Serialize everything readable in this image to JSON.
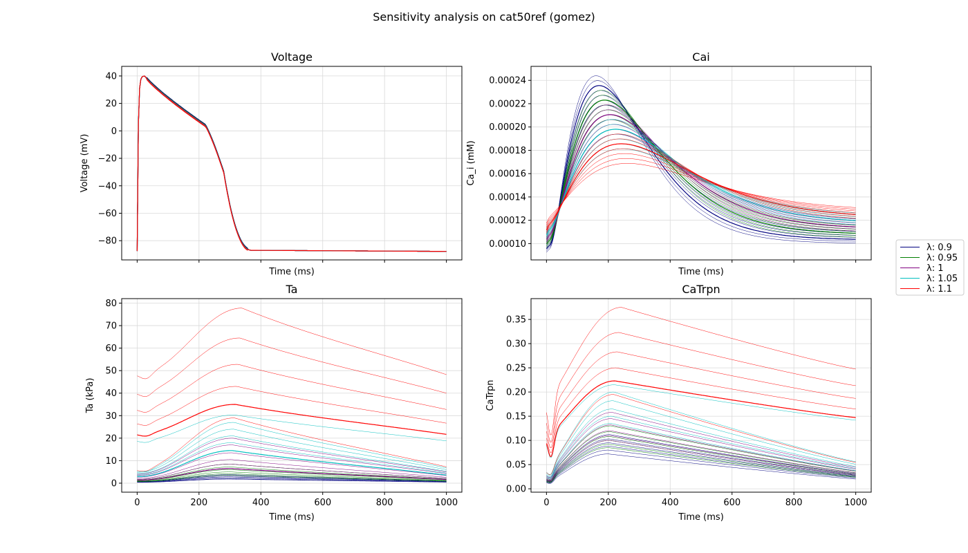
{
  "figure": {
    "suptitle": "Sensitivity analysis on cat50ref (gomez)"
  },
  "legend": {
    "placement": "right-center",
    "entries": [
      {
        "label": "λ: 0.9",
        "color": "#00007f"
      },
      {
        "label": "λ: 0.95",
        "color": "#007f00"
      },
      {
        "label": "λ: 1",
        "color": "#7f007f"
      },
      {
        "label": "λ: 1.05",
        "color": "#00bfbf"
      },
      {
        "label": "λ: 1.1",
        "color": "#ff0000"
      }
    ]
  },
  "chart_data": [
    {
      "type": "line",
      "title": "Voltage",
      "xlabel": "Time (ms)",
      "ylabel": "Voltage (mV)",
      "xlim": [
        -50,
        1050
      ],
      "ylim": [
        -94,
        47
      ],
      "xticks": [
        0,
        200,
        400,
        600,
        800,
        1000
      ],
      "yticks": [
        -80,
        -60,
        -40,
        -20,
        0,
        20,
        40
      ],
      "ytick_labels": [
        "−80",
        "−60",
        "−40",
        "−20",
        "0",
        "20",
        "40"
      ],
      "show_xtick_labels": false,
      "grid": true,
      "model": "voltage"
    },
    {
      "type": "line",
      "title": "Cai",
      "xlabel": "Time (ms)",
      "ylabel": "Ca_i (mM)",
      "xlim": [
        -50,
        1050
      ],
      "ylim": [
        8.6e-05,
        0.000252
      ],
      "xticks": [
        0,
        200,
        400,
        600,
        800,
        1000
      ],
      "yticks": [
        0.0001,
        0.00012,
        0.00014,
        0.00016,
        0.00018,
        0.0002,
        0.00022,
        0.00024
      ],
      "ytick_labels": [
        "0.00010",
        "0.00012",
        "0.00014",
        "0.00016",
        "0.00018",
        "0.00020",
        "0.00022",
        "0.00024"
      ],
      "show_xtick_labels": false,
      "grid": true,
      "model": "cai"
    },
    {
      "type": "line",
      "title": "Ta",
      "xlabel": "Time (ms)",
      "ylabel": "Ta (kPa)",
      "xlim": [
        -50,
        1050
      ],
      "ylim": [
        -4,
        82
      ],
      "xticks": [
        0,
        200,
        400,
        600,
        800,
        1000
      ],
      "yticks": [
        0,
        10,
        20,
        30,
        40,
        50,
        60,
        70,
        80
      ],
      "ytick_labels": [
        "0",
        "10",
        "20",
        "30",
        "40",
        "50",
        "60",
        "70",
        "80"
      ],
      "show_xtick_labels": true,
      "grid": true,
      "model": "ta"
    },
    {
      "type": "line",
      "title": "CaTrpn",
      "xlabel": "Time (ms)",
      "ylabel": "CaTrpn",
      "xlim": [
        -50,
        1050
      ],
      "ylim": [
        -0.007,
        0.393
      ],
      "xticks": [
        0,
        200,
        400,
        600,
        800,
        1000
      ],
      "yticks": [
        0.0,
        0.05,
        0.1,
        0.15,
        0.2,
        0.25,
        0.3,
        0.35
      ],
      "ytick_labels": [
        "0.00",
        "0.05",
        "0.10",
        "0.15",
        "0.20",
        "0.25",
        "0.30",
        "0.35"
      ],
      "show_xtick_labels": true,
      "grid": true,
      "model": "catrpn"
    }
  ]
}
